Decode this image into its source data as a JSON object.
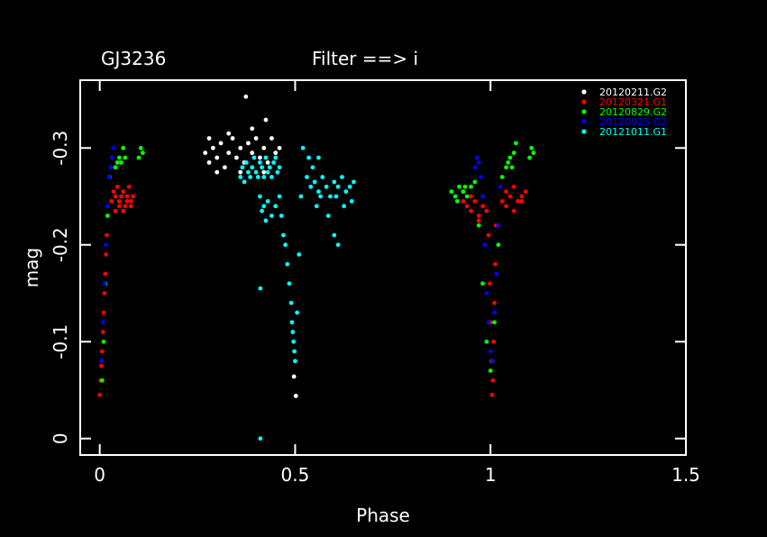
{
  "chart_data": {
    "type": "scatter",
    "title": "GJ3236",
    "subtitle": "Filter ==> i",
    "x_label": "Phase",
    "y_label": "mag",
    "xlim": [
      -0.05,
      1.5
    ],
    "xticks": [
      0,
      0.5,
      1,
      1.5
    ],
    "ylim": [
      0.017,
      -0.37
    ],
    "yticks": [
      0,
      -0.1,
      -0.2,
      -0.3
    ],
    "legend": "top-right",
    "series": [
      {
        "name": "20120211.G2",
        "color": "#ffffff",
        "x": [
          0.27,
          0.28,
          0.29,
          0.3,
          0.31,
          0.32,
          0.33,
          0.34,
          0.35,
          0.36,
          0.37,
          0.38,
          0.39,
          0.4,
          0.41,
          0.42,
          0.43,
          0.44,
          0.45,
          0.46,
          0.28,
          0.3,
          0.33,
          0.36,
          0.39,
          0.42,
          0.374,
          0.425,
          0.497,
          0.502
        ],
        "values": [
          -0.295,
          -0.285,
          -0.3,
          -0.29,
          -0.305,
          -0.28,
          -0.295,
          -0.31,
          -0.29,
          -0.3,
          -0.285,
          -0.305,
          -0.295,
          -0.31,
          -0.29,
          -0.3,
          -0.285,
          -0.31,
          -0.295,
          -0.3,
          -0.31,
          -0.275,
          -0.315,
          -0.275,
          -0.32,
          -0.275,
          -0.353,
          -0.329,
          -0.064,
          -0.044
        ]
      },
      {
        "name": "20120321.G1",
        "color": "#ff0000",
        "x": [
          0.0,
          0.002,
          0.004,
          0.006,
          0.008,
          0.01,
          0.012,
          0.014,
          0.016,
          0.018,
          0.03,
          0.035,
          0.04,
          0.045,
          0.05,
          0.055,
          0.06,
          0.065,
          0.07,
          0.075,
          0.08,
          0.085,
          0.04,
          0.05,
          0.06,
          0.07,
          0.08,
          0.93,
          0.94,
          0.95,
          0.96,
          0.97,
          0.98,
          0.99,
          0.95,
          0.97,
          0.995,
          0.998,
          1.0,
          1.002,
          1.004,
          1.006,
          1.008,
          1.01,
          1.012,
          1.014,
          1.03,
          1.04,
          1.05,
          1.06,
          1.07,
          1.08,
          1.09,
          1.04,
          1.06,
          1.08
        ],
        "values": [
          -0.045,
          -0.06,
          -0.075,
          -0.09,
          -0.11,
          -0.13,
          -0.15,
          -0.17,
          -0.19,
          -0.21,
          -0.245,
          -0.255,
          -0.25,
          -0.26,
          -0.245,
          -0.25,
          -0.255,
          -0.24,
          -0.25,
          -0.26,
          -0.245,
          -0.25,
          -0.235,
          -0.24,
          -0.235,
          -0.245,
          -0.24,
          -0.245,
          -0.24,
          -0.235,
          -0.245,
          -0.23,
          -0.24,
          -0.235,
          -0.25,
          -0.225,
          -0.21,
          -0.16,
          -0.12,
          -0.08,
          -0.045,
          -0.06,
          -0.1,
          -0.14,
          -0.18,
          -0.22,
          -0.245,
          -0.255,
          -0.25,
          -0.26,
          -0.245,
          -0.25,
          -0.255,
          -0.24,
          -0.235,
          -0.245
        ]
      },
      {
        "name": "20120829.G2",
        "color": "#00ff00",
        "x": [
          0.006,
          0.01,
          0.014,
          0.02,
          0.025,
          0.04,
          0.045,
          0.05,
          0.055,
          0.06,
          0.065,
          0.1,
          0.105,
          0.11,
          0.9,
          0.91,
          0.92,
          0.93,
          0.94,
          0.95,
          0.96,
          0.915,
          0.935,
          0.97,
          0.98,
          0.99,
          1.0,
          1.005,
          1.01,
          1.02,
          1.03,
          1.04,
          1.045,
          1.05,
          1.055,
          1.06,
          1.065,
          1.1,
          1.105,
          1.11
        ],
        "values": [
          -0.06,
          -0.1,
          -0.16,
          -0.23,
          -0.27,
          -0.28,
          -0.285,
          -0.29,
          -0.285,
          -0.3,
          -0.29,
          -0.29,
          -0.3,
          -0.295,
          -0.255,
          -0.25,
          -0.26,
          -0.255,
          -0.25,
          -0.26,
          -0.265,
          -0.245,
          -0.26,
          -0.22,
          -0.16,
          -0.1,
          -0.07,
          -0.08,
          -0.12,
          -0.2,
          -0.27,
          -0.28,
          -0.285,
          -0.29,
          -0.28,
          -0.295,
          -0.305,
          -0.29,
          -0.3,
          -0.295
        ]
      },
      {
        "name": "20120925.G2",
        "color": "#0000ff",
        "x": [
          0.004,
          0.008,
          0.012,
          0.016,
          0.02,
          0.024,
          0.028,
          0.032,
          0.035,
          0.96,
          0.965,
          0.97,
          0.975,
          0.98,
          0.985,
          0.99,
          0.995,
          1.0,
          1.005,
          1.01,
          1.015,
          1.02,
          1.025
        ],
        "values": [
          -0.08,
          -0.12,
          -0.16,
          -0.2,
          -0.24,
          -0.27,
          -0.28,
          -0.29,
          -0.3,
          -0.28,
          -0.29,
          -0.285,
          -0.27,
          -0.25,
          -0.2,
          -0.15,
          -0.12,
          -0.09,
          -0.08,
          -0.13,
          -0.17,
          -0.22,
          -0.26
        ]
      },
      {
        "name": "20121011.G1",
        "color": "#00ffff",
        "x": [
          0.36,
          0.365,
          0.37,
          0.375,
          0.38,
          0.385,
          0.39,
          0.395,
          0.4,
          0.405,
          0.41,
          0.415,
          0.42,
          0.425,
          0.43,
          0.435,
          0.44,
          0.445,
          0.45,
          0.455,
          0.46,
          0.41,
          0.415,
          0.42,
          0.425,
          0.43,
          0.44,
          0.45,
          0.46,
          0.465,
          0.47,
          0.475,
          0.48,
          0.485,
          0.49,
          0.492,
          0.494,
          0.496,
          0.498,
          0.5,
          0.505,
          0.51,
          0.515,
          0.52,
          0.53,
          0.54,
          0.55,
          0.56,
          0.57,
          0.58,
          0.59,
          0.6,
          0.61,
          0.62,
          0.63,
          0.64,
          0.65,
          0.535,
          0.545,
          0.555,
          0.565,
          0.585,
          0.605,
          0.625,
          0.645,
          0.56,
          0.6,
          0.61,
          0.411,
          0.411
        ],
        "values": [
          -0.27,
          -0.28,
          -0.265,
          -0.285,
          -0.275,
          -0.27,
          -0.28,
          -0.29,
          -0.275,
          -0.27,
          -0.285,
          -0.28,
          -0.27,
          -0.29,
          -0.275,
          -0.28,
          -0.27,
          -0.285,
          -0.29,
          -0.275,
          -0.28,
          -0.25,
          -0.235,
          -0.24,
          -0.225,
          -0.245,
          -0.23,
          -0.24,
          -0.25,
          -0.23,
          -0.21,
          -0.2,
          -0.18,
          -0.16,
          -0.14,
          -0.12,
          -0.11,
          -0.1,
          -0.09,
          -0.08,
          -0.13,
          -0.19,
          -0.25,
          -0.3,
          -0.27,
          -0.26,
          -0.265,
          -0.255,
          -0.27,
          -0.26,
          -0.25,
          -0.265,
          -0.26,
          -0.27,
          -0.255,
          -0.26,
          -0.265,
          -0.29,
          -0.28,
          -0.24,
          -0.25,
          -0.23,
          -0.25,
          -0.24,
          -0.245,
          -0.29,
          -0.21,
          -0.2,
          -0.155,
          0
        ]
      }
    ]
  }
}
